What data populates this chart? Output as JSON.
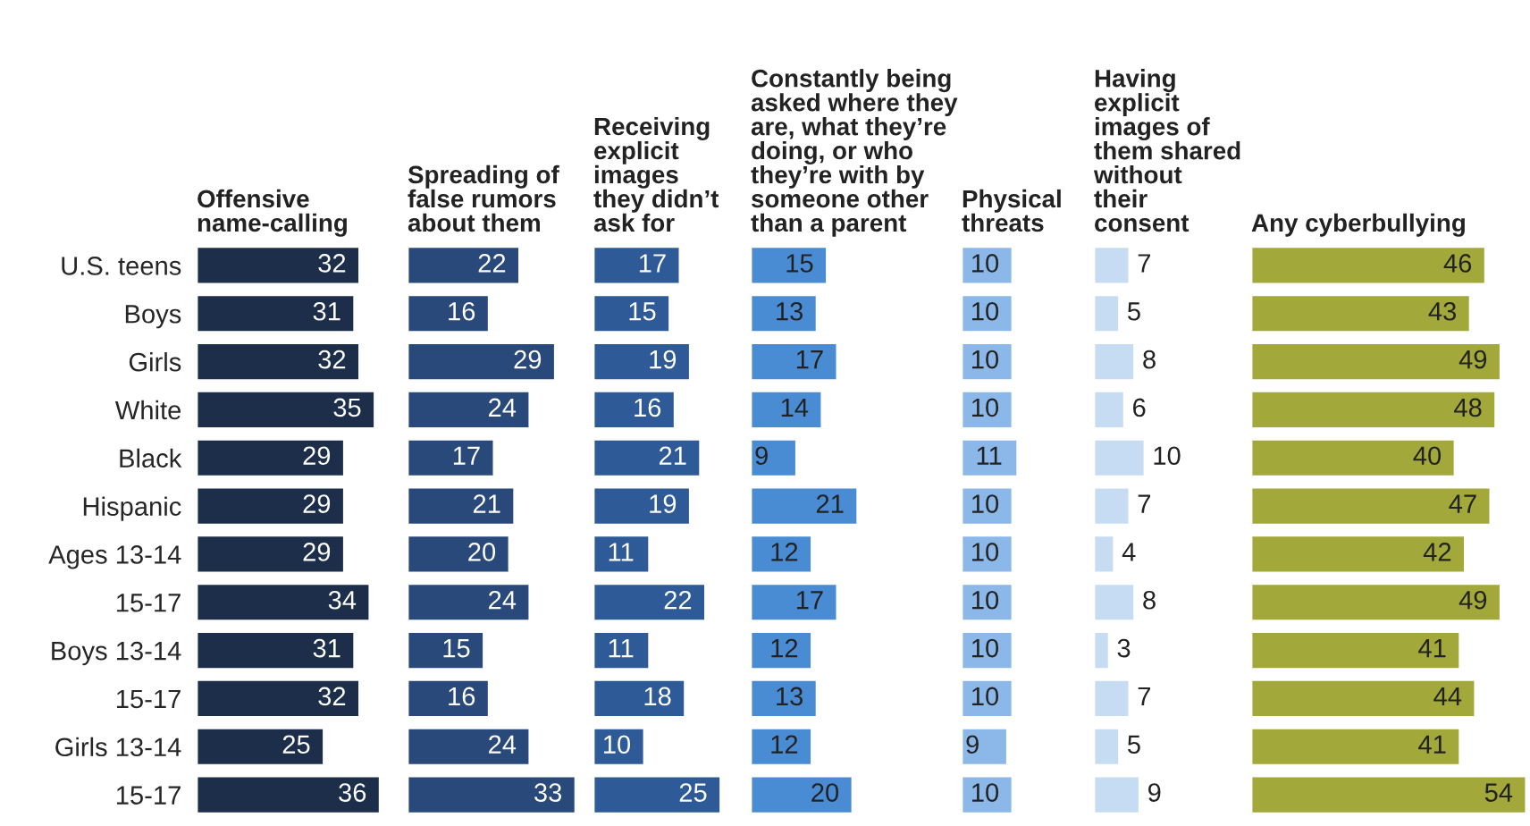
{
  "chart_data": [
    {
      "type": "bar",
      "orientation": "horizontal",
      "title": "Offensive\nname-calling",
      "categories": [
        "U.S. teens",
        "Boys",
        "Girls",
        "White",
        "Black",
        "Hispanic",
        "Ages 13-14",
        "15-17",
        "Boys 13-14",
        "15-17",
        "Girls 13-14",
        "15-17"
      ],
      "values": [
        32,
        31,
        32,
        35,
        29,
        29,
        29,
        34,
        31,
        32,
        25,
        36
      ],
      "color": "#1c2e4a",
      "data_labels": true,
      "tick_labels": "y"
    },
    {
      "type": "bar",
      "orientation": "horizontal",
      "title": "Spreading of\nfalse rumors\nabout them",
      "categories": [
        null,
        null,
        null,
        null,
        null,
        null,
        null,
        null,
        null,
        null,
        null,
        null
      ],
      "values": [
        22,
        16,
        29,
        24,
        17,
        21,
        20,
        24,
        15,
        16,
        24,
        33
      ],
      "color": "#29497a",
      "data_labels": true,
      "tick_labels": false
    },
    {
      "type": "bar",
      "orientation": "horizontal",
      "title": "Receiving\nexplicit\nimages\nthey didn’t\nask for",
      "categories": [
        null,
        null,
        null,
        null,
        null,
        null,
        null,
        null,
        null,
        null,
        null,
        null
      ],
      "values": [
        17,
        15,
        19,
        16,
        21,
        19,
        11,
        22,
        11,
        18,
        10,
        25
      ],
      "color": "#2e5b97",
      "data_labels": true,
      "tick_labels": false
    },
    {
      "type": "bar",
      "orientation": "horizontal",
      "title": "Constantly being\nasked where they\nare, what they’re\ndoing, or who\nthey’re with by\nsomeone other\nthan a parent",
      "categories": [
        null,
        null,
        null,
        null,
        null,
        null,
        null,
        null,
        null,
        null,
        null,
        null
      ],
      "values": [
        15,
        13,
        17,
        14,
        9,
        21,
        12,
        17,
        12,
        13,
        12,
        20
      ],
      "color": "#4a8cd4",
      "data_labels": true,
      "tick_labels": false
    },
    {
      "type": "bar",
      "orientation": "horizontal",
      "title": "Physical\nthreats",
      "categories": [
        null,
        null,
        null,
        null,
        null,
        null,
        null,
        null,
        null,
        null,
        null,
        null
      ],
      "values": [
        10,
        10,
        10,
        10,
        11,
        10,
        10,
        10,
        10,
        10,
        9,
        10
      ],
      "color": "#8bb8e8",
      "data_labels": true,
      "tick_labels": false
    },
    {
      "type": "bar",
      "orientation": "horizontal",
      "title": "Having\nexplicit\nimages of\nthem shared\nwithout\ntheir\nconsent",
      "categories": [
        null,
        null,
        null,
        null,
        null,
        null,
        null,
        null,
        null,
        null,
        null,
        null
      ],
      "values": [
        7,
        5,
        8,
        6,
        10,
        7,
        4,
        8,
        3,
        7,
        5,
        9
      ],
      "color": "#c6dcf3",
      "data_labels": true,
      "tick_labels": false
    },
    {
      "type": "bar",
      "orientation": "horizontal",
      "title": "Any cyberbullying",
      "categories": [
        null,
        null,
        null,
        null,
        null,
        null,
        null,
        null,
        null,
        null,
        null,
        null
      ],
      "values": [
        46,
        43,
        49,
        48,
        40,
        47,
        42,
        49,
        41,
        44,
        41,
        54
      ],
      "color": "#a2a83a",
      "data_labels": true,
      "tick_labels": false
    }
  ]
}
